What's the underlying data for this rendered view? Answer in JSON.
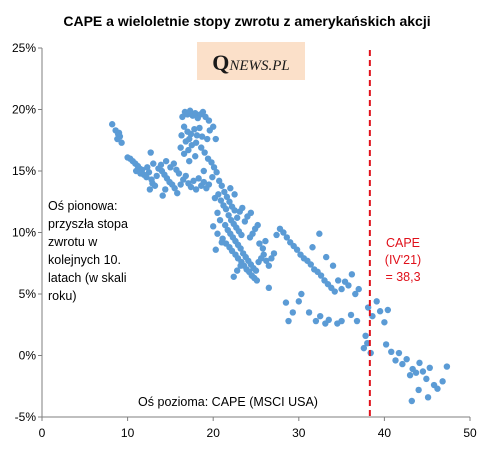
{
  "chart_data": {
    "type": "scatter",
    "title": "CAPE a wieloletnie stopy zwrotu z amerykańskich akcji",
    "xlabel": "Oś pozioma: CAPE (MSCI USA)",
    "ylabel": "Oś pionowa: przyszła stopa zwrotu w kolejnych 10. latach (w skali roku)",
    "ylabel_lines": [
      "Oś pionowa:",
      "przyszła stopa",
      "zwrotu w",
      "kolejnych 10.",
      "latach (w skali",
      "roku)"
    ],
    "xlim": [
      0,
      50
    ],
    "ylim": [
      -5,
      25
    ],
    "x_ticks": [
      0,
      10,
      20,
      30,
      40,
      50
    ],
    "y_ticks": [
      -5,
      0,
      5,
      10,
      15,
      20,
      25
    ],
    "y_tick_suffix": "%",
    "grid": false,
    "point_color": "#5b9bd5",
    "marker": {
      "x": 38.3,
      "color": "#e0101a",
      "style": "dashed",
      "label_lines": [
        "CAPE",
        "(IV'21)",
        "= 38,3"
      ]
    },
    "points": [
      [
        8.2,
        18.8
      ],
      [
        8.6,
        18.3
      ],
      [
        8.9,
        18.0
      ],
      [
        9.1,
        17.8
      ],
      [
        8.8,
        17.6
      ],
      [
        9.3,
        17.3
      ],
      [
        9.0,
        18.1
      ],
      [
        10.0,
        16.1
      ],
      [
        10.3,
        16.0
      ],
      [
        10.6,
        15.8
      ],
      [
        10.9,
        15.6
      ],
      [
        11.2,
        15.4
      ],
      [
        11.4,
        15.2
      ],
      [
        11.7,
        15.1
      ],
      [
        11.0,
        15.0
      ],
      [
        11.5,
        14.8
      ],
      [
        11.9,
        14.7
      ],
      [
        12.2,
        14.5
      ],
      [
        12.5,
        14.9
      ],
      [
        12.8,
        14.3
      ],
      [
        12.3,
        15.3
      ],
      [
        12.9,
        14.0
      ],
      [
        13.2,
        13.8
      ],
      [
        12.6,
        13.5
      ],
      [
        13.4,
        14.6
      ],
      [
        13.0,
        15.6
      ],
      [
        12.7,
        16.5
      ],
      [
        13.6,
        15.2
      ],
      [
        14.0,
        15.0
      ],
      [
        14.3,
        14.7
      ],
      [
        14.6,
        14.4
      ],
      [
        14.9,
        14.1
      ],
      [
        15.2,
        13.9
      ],
      [
        14.4,
        13.5
      ],
      [
        14.1,
        13.0
      ],
      [
        13.9,
        15.5
      ],
      [
        14.5,
        15.8
      ],
      [
        15.0,
        15.3
      ],
      [
        15.4,
        15.6
      ],
      [
        15.7,
        15.1
      ],
      [
        16.0,
        14.8
      ],
      [
        15.5,
        13.6
      ],
      [
        15.8,
        13.2
      ],
      [
        16.2,
        13.9
      ],
      [
        16.5,
        14.3
      ],
      [
        16.8,
        14.6
      ],
      [
        17.1,
        14.0
      ],
      [
        17.4,
        13.7
      ],
      [
        17.7,
        14.2
      ],
      [
        18.0,
        13.5
      ],
      [
        18.3,
        14.4
      ],
      [
        18.6,
        13.8
      ],
      [
        18.9,
        14.1
      ],
      [
        19.2,
        13.6
      ],
      [
        19.5,
        13.9
      ],
      [
        17.2,
        15.8
      ],
      [
        16.4,
        19.4
      ],
      [
        16.7,
        19.8
      ],
      [
        17.0,
        19.6
      ],
      [
        17.3,
        19.9
      ],
      [
        17.6,
        19.5
      ],
      [
        17.9,
        19.7
      ],
      [
        18.2,
        19.3
      ],
      [
        18.5,
        19.6
      ],
      [
        18.8,
        19.8
      ],
      [
        19.1,
        19.4
      ],
      [
        16.6,
        18.6
      ],
      [
        17.0,
        18.2
      ],
      [
        17.4,
        18.0
      ],
      [
        17.8,
        18.4
      ],
      [
        18.1,
        17.9
      ],
      [
        18.4,
        18.5
      ],
      [
        16.3,
        17.9
      ],
      [
        16.8,
        17.4
      ],
      [
        17.2,
        17.6
      ],
      [
        17.5,
        17.1
      ],
      [
        18.0,
        17.3
      ],
      [
        16.2,
        16.9
      ],
      [
        16.6,
        16.4
      ],
      [
        17.1,
        16.7
      ],
      [
        17.9,
        16.2
      ],
      [
        18.6,
        16.9
      ],
      [
        19.0,
        16.5
      ],
      [
        19.4,
        16.0
      ],
      [
        19.8,
        15.7
      ],
      [
        20.1,
        15.3
      ],
      [
        18.7,
        17.8
      ],
      [
        19.3,
        17.6
      ],
      [
        20.0,
        18.6
      ],
      [
        19.6,
        18.3
      ],
      [
        20.3,
        17.6
      ],
      [
        19.5,
        19.1
      ],
      [
        18.9,
        15.0
      ],
      [
        19.9,
        14.5
      ],
      [
        20.4,
        14.9
      ],
      [
        20.7,
        14.2
      ],
      [
        21.0,
        13.8
      ],
      [
        21.3,
        13.3
      ],
      [
        21.6,
        12.9
      ],
      [
        21.9,
        12.5
      ],
      [
        22.2,
        12.1
      ],
      [
        22.5,
        11.8
      ],
      [
        20.6,
        13.1
      ],
      [
        20.9,
        12.6
      ],
      [
        21.2,
        12.2
      ],
      [
        21.5,
        11.9
      ],
      [
        21.8,
        11.4
      ],
      [
        22.1,
        11.0
      ],
      [
        22.4,
        10.7
      ],
      [
        22.7,
        10.4
      ],
      [
        23.0,
        10.1
      ],
      [
        23.3,
        9.8
      ],
      [
        21.4,
        10.6
      ],
      [
        21.7,
        10.2
      ],
      [
        22.0,
        9.9
      ],
      [
        22.3,
        9.6
      ],
      [
        22.6,
        9.3
      ],
      [
        22.9,
        9.0
      ],
      [
        23.2,
        8.7
      ],
      [
        21.1,
        9.5
      ],
      [
        21.5,
        9.1
      ],
      [
        21.9,
        8.8
      ],
      [
        22.2,
        8.5
      ],
      [
        22.6,
        8.2
      ],
      [
        22.9,
        7.9
      ],
      [
        23.3,
        7.6
      ],
      [
        23.6,
        7.3
      ],
      [
        23.9,
        7.0
      ],
      [
        24.2,
        6.8
      ],
      [
        24.5,
        6.5
      ],
      [
        24.8,
        6.3
      ],
      [
        25.1,
        6.1
      ],
      [
        23.5,
        8.3
      ],
      [
        23.8,
        8.0
      ],
      [
        24.1,
        7.7
      ],
      [
        24.4,
        7.4
      ],
      [
        24.7,
        7.1
      ],
      [
        25.0,
        6.9
      ],
      [
        25.3,
        7.6
      ],
      [
        25.6,
        7.9
      ],
      [
        25.9,
        8.2
      ],
      [
        26.2,
        7.7
      ],
      [
        26.5,
        7.3
      ],
      [
        26.8,
        7.9
      ],
      [
        27.1,
        8.3
      ],
      [
        25.4,
        9.1
      ],
      [
        25.8,
        8.7
      ],
      [
        26.1,
        9.3
      ],
      [
        24.3,
        9.6
      ],
      [
        24.6,
        9.9
      ],
      [
        24.9,
        10.3
      ],
      [
        25.2,
        10.6
      ],
      [
        23.7,
        10.9
      ],
      [
        24.0,
        11.3
      ],
      [
        24.4,
        11.6
      ],
      [
        22.8,
        11.2
      ],
      [
        23.1,
        11.7
      ],
      [
        23.4,
        12.0
      ],
      [
        20.2,
        12.8
      ],
      [
        20.5,
        11.6
      ],
      [
        20.8,
        11.0
      ],
      [
        22.0,
        13.6
      ],
      [
        22.5,
        13.1
      ],
      [
        20.0,
        10.5
      ],
      [
        20.5,
        9.9
      ],
      [
        21.0,
        9.2
      ],
      [
        20.3,
        8.6
      ],
      [
        22.4,
        6.4
      ],
      [
        22.8,
        6.9
      ],
      [
        23.2,
        7.3
      ],
      [
        27.4,
        9.8
      ],
      [
        27.8,
        10.3
      ],
      [
        28.2,
        10.0
      ],
      [
        28.6,
        9.6
      ],
      [
        29.0,
        9.2
      ],
      [
        29.4,
        8.9
      ],
      [
        29.8,
        8.6
      ],
      [
        30.2,
        8.2
      ],
      [
        30.6,
        7.9
      ],
      [
        31.0,
        7.7
      ],
      [
        31.4,
        7.4
      ],
      [
        31.8,
        7.0
      ],
      [
        32.2,
        6.8
      ],
      [
        32.6,
        6.5
      ],
      [
        33.0,
        6.1
      ],
      [
        33.4,
        5.8
      ],
      [
        33.8,
        5.5
      ],
      [
        34.2,
        5.2
      ],
      [
        34.6,
        6.1
      ],
      [
        35.0,
        5.4
      ],
      [
        35.4,
        6.0
      ],
      [
        35.8,
        5.7
      ],
      [
        36.2,
        6.6
      ],
      [
        36.6,
        5.0
      ],
      [
        37.0,
        5.4
      ],
      [
        34.0,
        7.3
      ],
      [
        33.2,
        8.0
      ],
      [
        31.6,
        8.8
      ],
      [
        32.4,
        9.9
      ],
      [
        26.5,
        5.5
      ],
      [
        28.5,
        4.3
      ],
      [
        29.3,
        3.5
      ],
      [
        30.0,
        4.4
      ],
      [
        30.3,
        5.0
      ],
      [
        28.8,
        2.8
      ],
      [
        31.2,
        3.5
      ],
      [
        32.0,
        2.8
      ],
      [
        32.5,
        3.2
      ],
      [
        33.1,
        2.6
      ],
      [
        33.5,
        2.9
      ],
      [
        34.5,
        2.6
      ],
      [
        35.0,
        2.8
      ],
      [
        36.1,
        3.3
      ],
      [
        36.8,
        2.8
      ],
      [
        38.1,
        3.9
      ],
      [
        38.6,
        3.2
      ],
      [
        39.1,
        4.4
      ],
      [
        39.5,
        3.6
      ],
      [
        40.0,
        2.7
      ],
      [
        40.4,
        3.7
      ],
      [
        37.8,
        1.6
      ],
      [
        38.0,
        1.0
      ],
      [
        37.6,
        0.6
      ],
      [
        38.4,
        0.2
      ],
      [
        40.2,
        0.9
      ],
      [
        40.8,
        0.3
      ],
      [
        41.3,
        -0.4
      ],
      [
        41.7,
        0.2
      ],
      [
        42.1,
        -0.7
      ],
      [
        42.6,
        -0.3
      ],
      [
        43.0,
        -1.6
      ],
      [
        43.3,
        -1.1
      ],
      [
        43.7,
        -1.4
      ],
      [
        44.1,
        -0.6
      ],
      [
        44.5,
        -1.3
      ],
      [
        44.9,
        -1.9
      ],
      [
        45.3,
        -1.0
      ],
      [
        45.8,
        -2.4
      ],
      [
        46.2,
        -2.7
      ],
      [
        46.8,
        -2.1
      ],
      [
        47.3,
        -0.9
      ],
      [
        43.2,
        -3.7
      ],
      [
        45.1,
        -3.4
      ],
      [
        44.0,
        -2.8
      ]
    ]
  },
  "logo": {
    "q": "Q",
    "rest": "NEWS.PL"
  }
}
